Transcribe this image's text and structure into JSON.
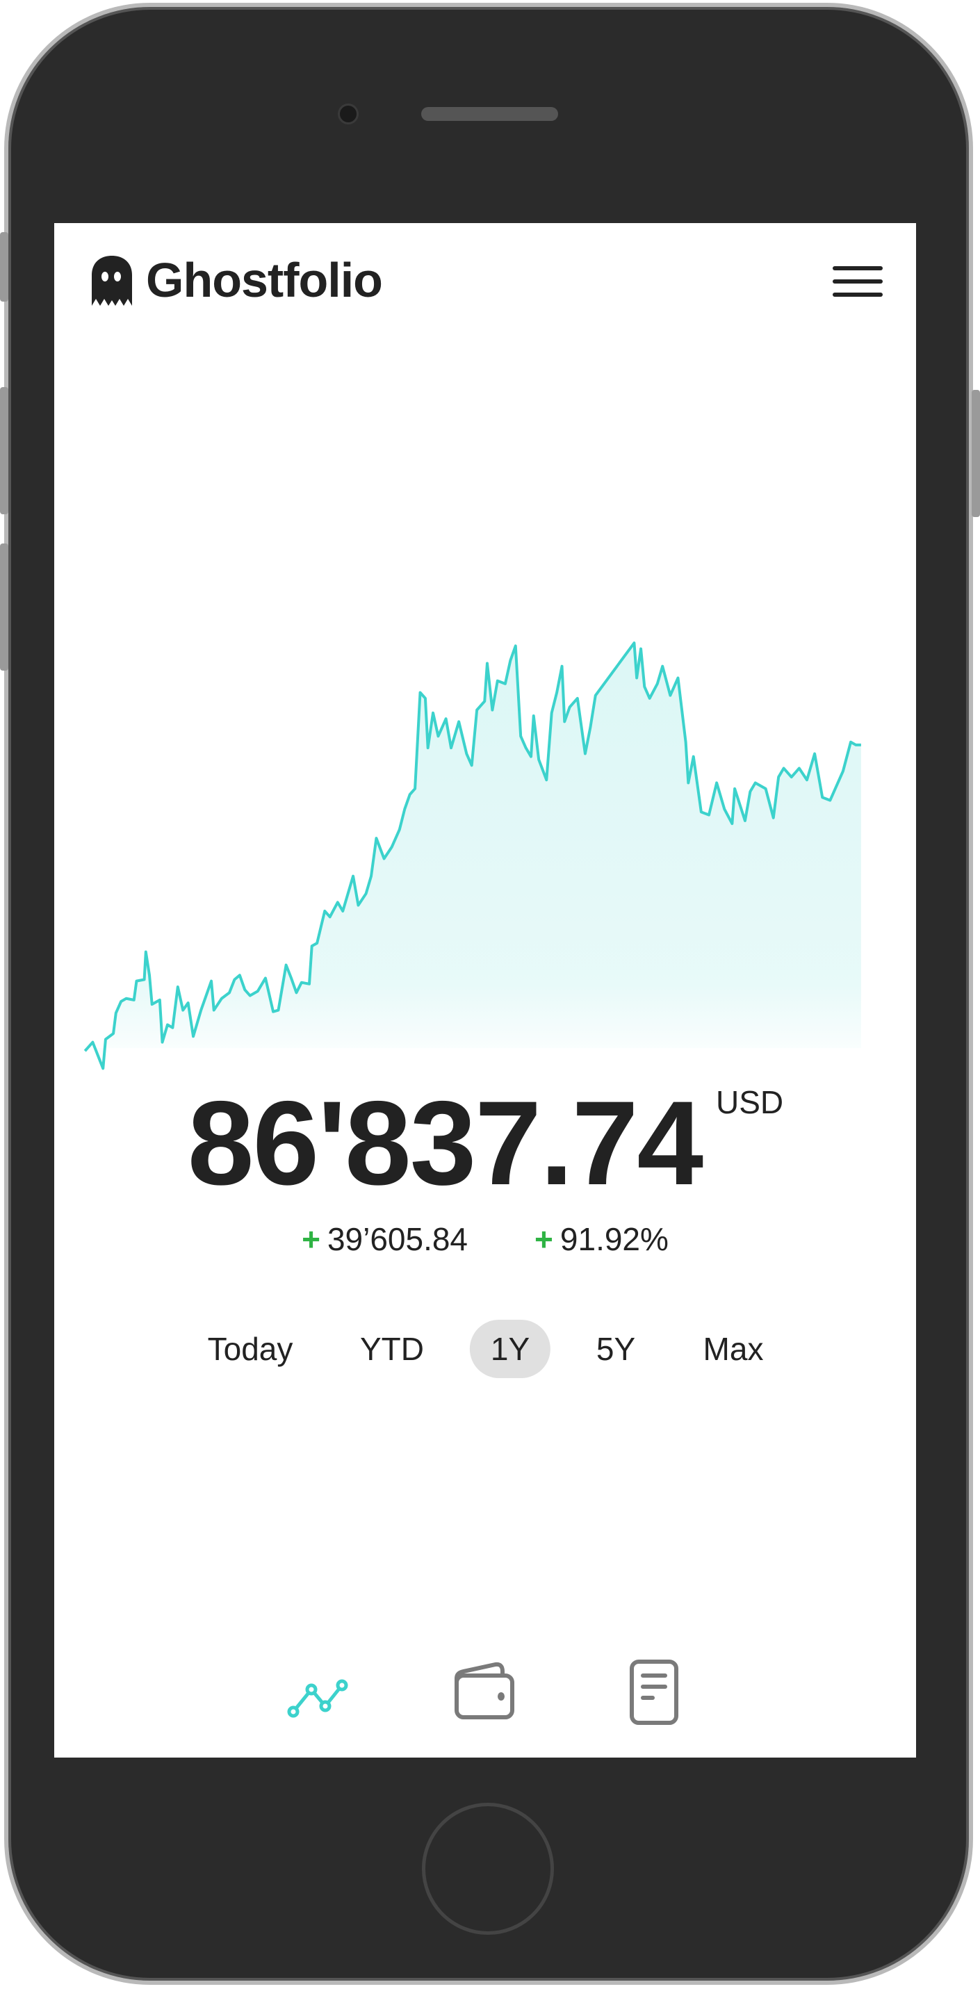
{
  "app": {
    "title": "Ghostfolio"
  },
  "header": {
    "logo_icon": "ghost-icon",
    "menu_icon": "hamburger-menu-icon"
  },
  "portfolio": {
    "value": "86'837.74",
    "currency": "USD",
    "change_sign": "+",
    "change_absolute": "39’605.84",
    "change_percent": "91.92%"
  },
  "ranges": [
    {
      "label": "Today",
      "active": false
    },
    {
      "label": "YTD",
      "active": false
    },
    {
      "label": "1Y",
      "active": true
    },
    {
      "label": "5Y",
      "active": false
    },
    {
      "label": "Max",
      "active": false
    }
  ],
  "bottom_nav": [
    {
      "icon": "chart-line-icon",
      "active": true
    },
    {
      "icon": "wallet-icon",
      "active": false
    },
    {
      "icon": "document-icon",
      "active": false
    }
  ],
  "colors": {
    "accent": "#3cd2cc",
    "positive": "#2fb344",
    "text": "#222222",
    "inactive_icon": "#7a7a7a",
    "active_range_bg": "#e0e0e0"
  },
  "chart_data": {
    "type": "area",
    "title": "",
    "xlabel": "",
    "ylabel": "",
    "grid": false,
    "axes_visible": false,
    "note_units": "relative (no axis printed)",
    "points": [
      [
        30,
        90
      ],
      [
        45,
        120
      ],
      [
        65,
        30
      ],
      [
        70,
        130
      ],
      [
        85,
        150
      ],
      [
        90,
        220
      ],
      [
        100,
        260
      ],
      [
        110,
        270
      ],
      [
        125,
        265
      ],
      [
        130,
        330
      ],
      [
        145,
        335
      ],
      [
        148,
        430
      ],
      [
        155,
        350
      ],
      [
        160,
        250
      ],
      [
        175,
        265
      ],
      [
        180,
        120
      ],
      [
        190,
        180
      ],
      [
        200,
        170
      ],
      [
        210,
        310
      ],
      [
        220,
        230
      ],
      [
        230,
        255
      ],
      [
        240,
        140
      ],
      [
        255,
        230
      ],
      [
        275,
        330
      ],
      [
        280,
        230
      ],
      [
        295,
        270
      ],
      [
        310,
        290
      ],
      [
        320,
        335
      ],
      [
        330,
        350
      ],
      [
        340,
        300
      ],
      [
        350,
        280
      ],
      [
        365,
        295
      ],
      [
        380,
        340
      ],
      [
        395,
        225
      ],
      [
        405,
        230
      ],
      [
        420,
        385
      ],
      [
        430,
        340
      ],
      [
        440,
        290
      ],
      [
        450,
        325
      ],
      [
        465,
        320
      ],
      [
        470,
        450
      ],
      [
        480,
        460
      ],
      [
        495,
        570
      ],
      [
        505,
        550
      ],
      [
        520,
        600
      ],
      [
        530,
        570
      ],
      [
        550,
        690
      ],
      [
        560,
        590
      ],
      [
        575,
        630
      ],
      [
        585,
        690
      ],
      [
        595,
        820
      ],
      [
        610,
        750
      ],
      [
        625,
        790
      ],
      [
        640,
        850
      ],
      [
        650,
        920
      ],
      [
        660,
        970
      ],
      [
        670,
        990
      ],
      [
        680,
        1320
      ],
      [
        690,
        1300
      ],
      [
        695,
        1130
      ],
      [
        705,
        1250
      ],
      [
        715,
        1170
      ],
      [
        730,
        1230
      ],
      [
        740,
        1130
      ],
      [
        755,
        1220
      ],
      [
        770,
        1110
      ],
      [
        780,
        1070
      ],
      [
        790,
        1260
      ],
      [
        805,
        1290
      ],
      [
        810,
        1420
      ],
      [
        820,
        1260
      ],
      [
        830,
        1360
      ],
      [
        845,
        1350
      ],
      [
        855,
        1430
      ],
      [
        865,
        1480
      ],
      [
        875,
        1170
      ],
      [
        885,
        1130
      ],
      [
        895,
        1100
      ],
      [
        900,
        1240
      ],
      [
        910,
        1090
      ],
      [
        925,
        1020
      ],
      [
        935,
        1250
      ],
      [
        945,
        1320
      ],
      [
        955,
        1410
      ],
      [
        960,
        1220
      ],
      [
        970,
        1270
      ],
      [
        985,
        1300
      ],
      [
        1000,
        1110
      ],
      [
        1010,
        1200
      ],
      [
        1020,
        1310
      ],
      [
        1095,
        1490
      ],
      [
        1100,
        1370
      ],
      [
        1108,
        1470
      ],
      [
        1115,
        1340
      ],
      [
        1125,
        1300
      ],
      [
        1140,
        1350
      ],
      [
        1150,
        1410
      ],
      [
        1165,
        1310
      ],
      [
        1180,
        1370
      ],
      [
        1195,
        1150
      ],
      [
        1200,
        1010
      ],
      [
        1210,
        1100
      ],
      [
        1225,
        910
      ],
      [
        1240,
        900
      ],
      [
        1255,
        1010
      ],
      [
        1270,
        920
      ],
      [
        1285,
        870
      ],
      [
        1290,
        990
      ],
      [
        1310,
        880
      ],
      [
        1320,
        980
      ],
      [
        1330,
        1010
      ],
      [
        1350,
        990
      ],
      [
        1365,
        890
      ],
      [
        1375,
        1030
      ],
      [
        1385,
        1060
      ],
      [
        1400,
        1030
      ],
      [
        1415,
        1060
      ],
      [
        1430,
        1020
      ],
      [
        1445,
        1110
      ],
      [
        1460,
        960
      ],
      [
        1475,
        950
      ],
      [
        1485,
        990
      ],
      [
        1500,
        1050
      ],
      [
        1515,
        1150
      ],
      [
        1525,
        1140
      ],
      [
        1535,
        1140
      ]
    ]
  }
}
